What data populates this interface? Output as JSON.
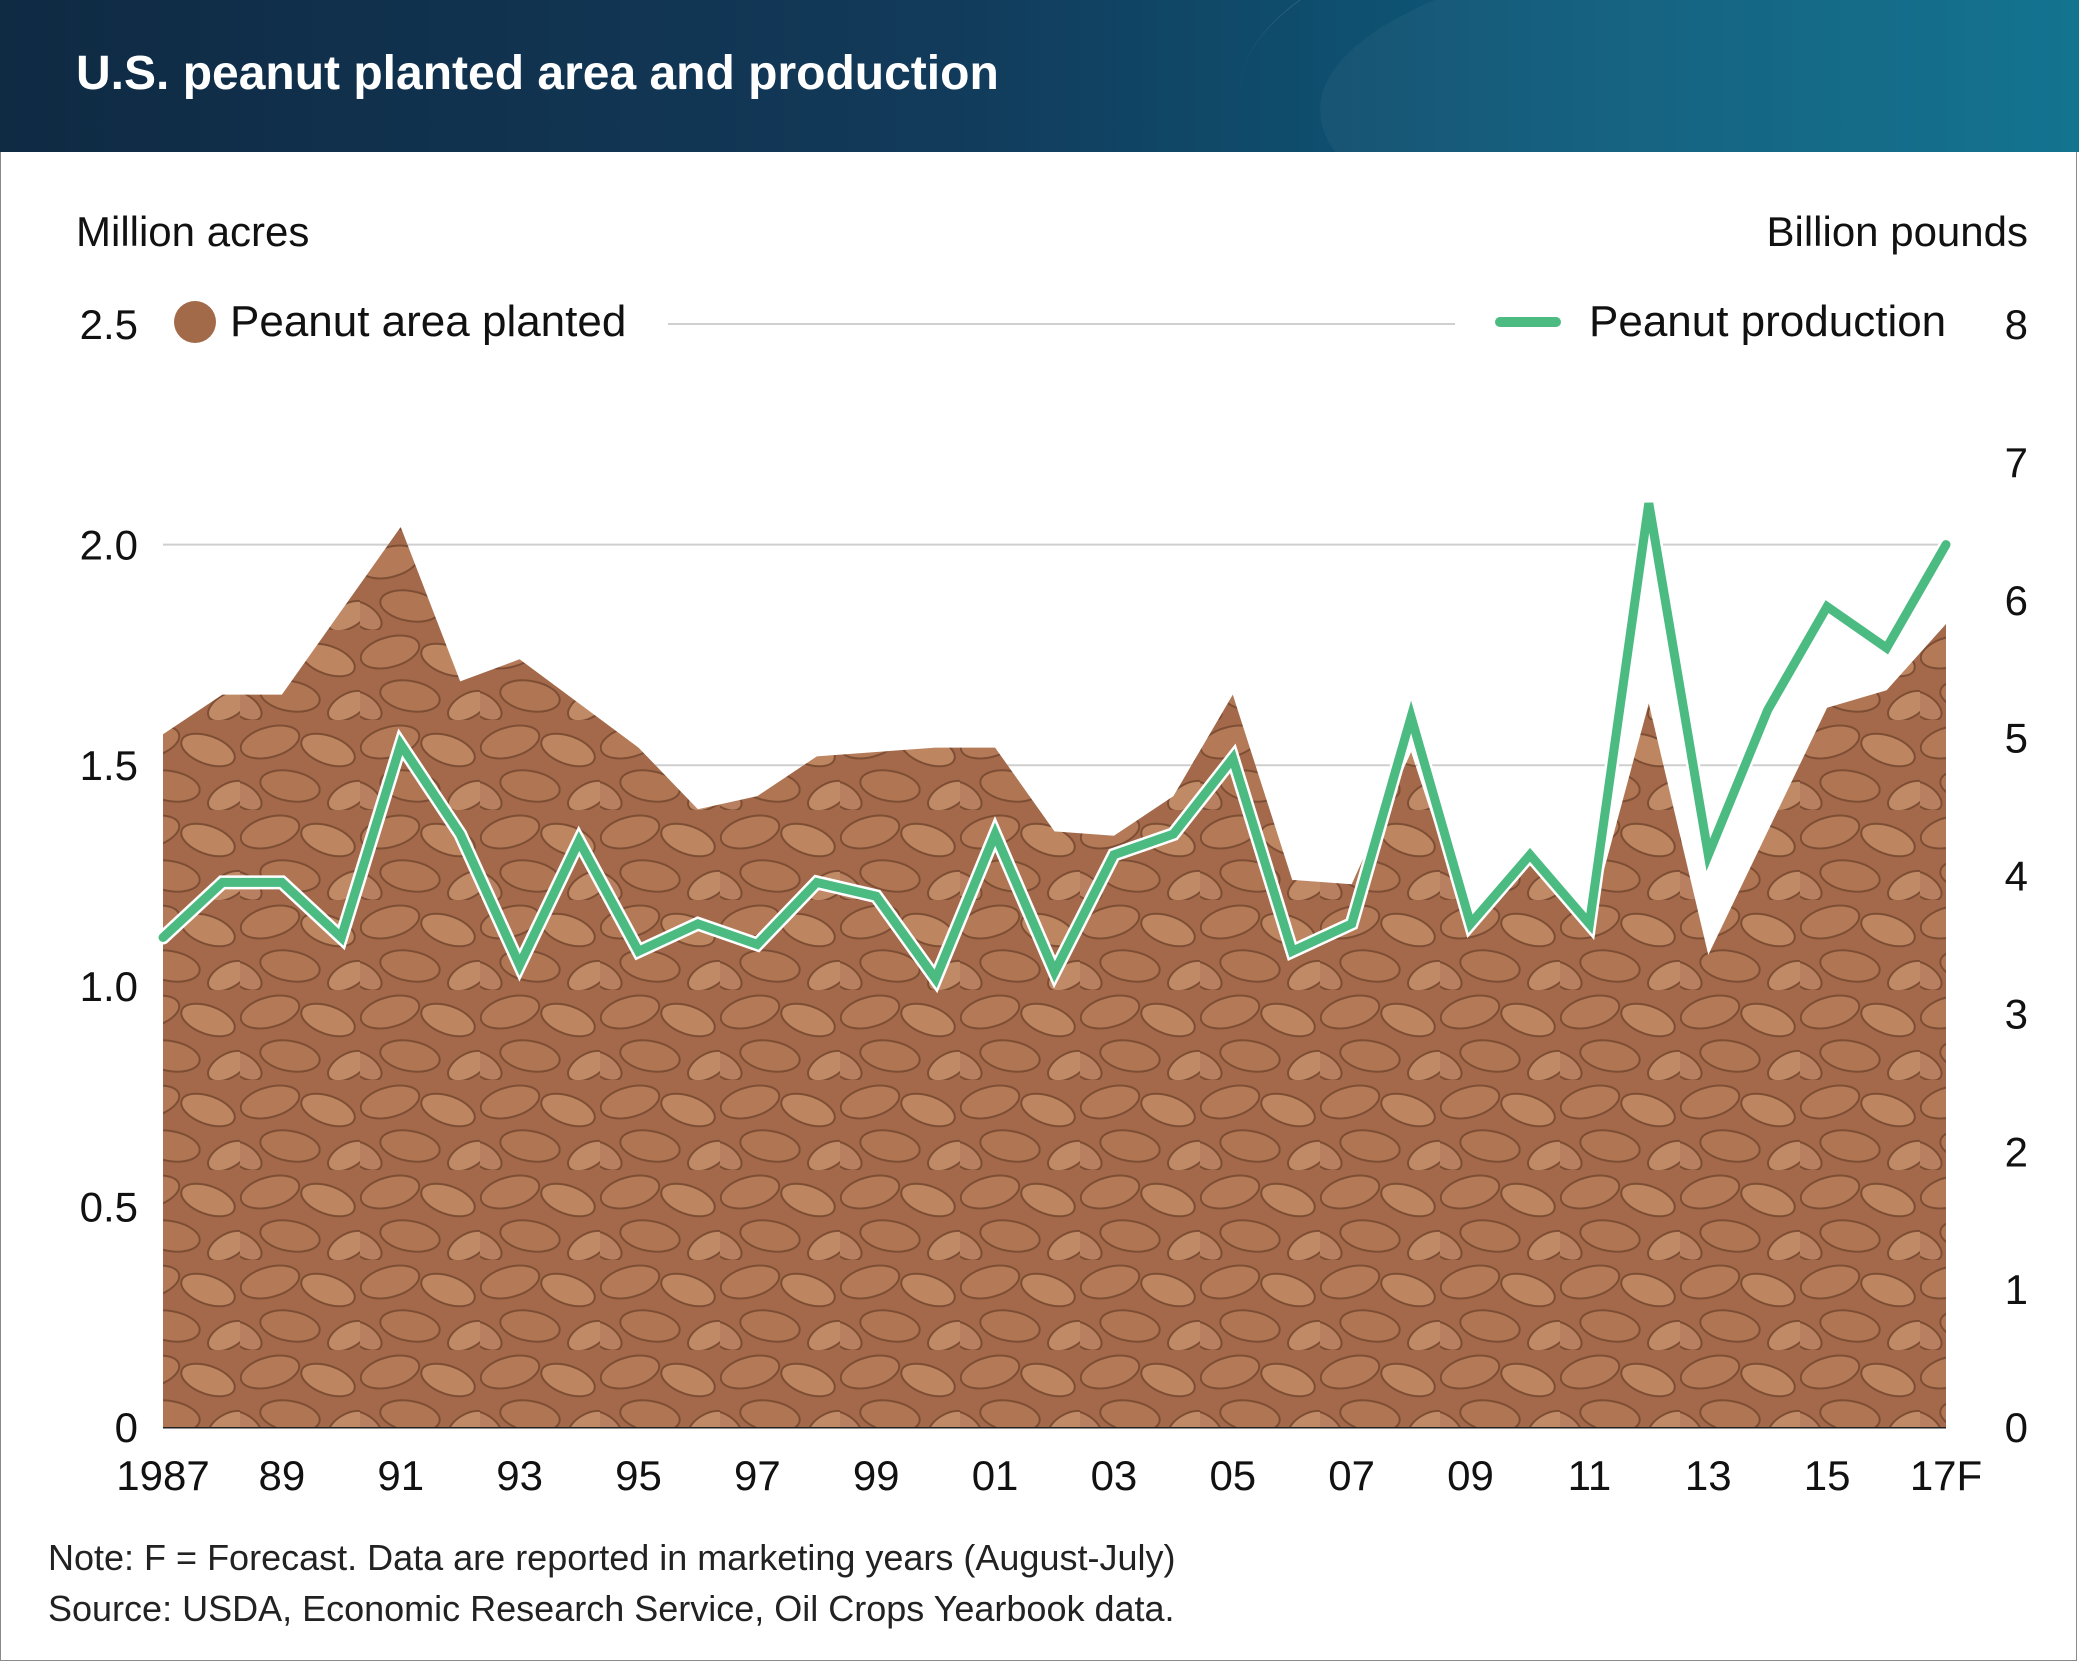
{
  "title": "U.S. peanut planted area and production",
  "left_axis_title": "Million acres",
  "right_axis_title": "Billion pounds",
  "legend": {
    "area_label": "Peanut area planted",
    "line_label": "Peanut production"
  },
  "notes": {
    "note": "Note: F = Forecast. Data are reported in marketing years (August-July)",
    "source": "Source: USDA, Economic Research Service, Oil Crops Yearbook data."
  },
  "colors": {
    "area": "#a26a48",
    "line": "#4cbb82",
    "header_start": "#0f2a43",
    "header_end": "#0a6f8c"
  },
  "chart_data": {
    "type": "area",
    "x_labels": [
      "1987",
      "89",
      "91",
      "93",
      "95",
      "97",
      "99",
      "01",
      "03",
      "05",
      "07",
      "09",
      "11",
      "13",
      "15",
      "17F"
    ],
    "years": [
      1987,
      1988,
      1989,
      1990,
      1991,
      1992,
      1993,
      1994,
      1995,
      1996,
      1997,
      1998,
      1999,
      2000,
      2001,
      2002,
      2003,
      2004,
      2005,
      2006,
      2007,
      2008,
      2009,
      2010,
      2011,
      2012,
      2013,
      2014,
      2015,
      2016,
      2017
    ],
    "y_left_ticks": [
      "0",
      "0.5",
      "1.0",
      "1.5",
      "2.0",
      "2.5"
    ],
    "y_right_ticks": [
      "0",
      "1",
      "2",
      "3",
      "4",
      "5",
      "6",
      "7",
      "8"
    ],
    "y_left_range": [
      0,
      2.5
    ],
    "y_right_range": [
      0,
      8
    ],
    "grid": true,
    "series": [
      {
        "name": "Peanut area planted",
        "axis": "left",
        "style": "area with peanut texture",
        "values": [
          1.57,
          1.66,
          1.66,
          1.85,
          2.04,
          1.69,
          1.74,
          1.64,
          1.54,
          1.4,
          1.43,
          1.52,
          1.53,
          1.54,
          1.54,
          1.35,
          1.34,
          1.43,
          1.66,
          1.24,
          1.23,
          1.53,
          1.12,
          1.29,
          1.14,
          1.64,
          1.07,
          1.35,
          1.63,
          1.67,
          1.82
        ]
      },
      {
        "name": "Peanut production",
        "axis": "right",
        "style": "line",
        "values": [
          3.55,
          3.95,
          3.95,
          3.55,
          4.95,
          4.3,
          3.35,
          4.25,
          3.45,
          3.65,
          3.5,
          3.95,
          3.85,
          3.25,
          4.3,
          3.3,
          4.15,
          4.3,
          4.85,
          3.45,
          3.65,
          5.15,
          3.65,
          4.15,
          3.65,
          6.7,
          4.15,
          5.2,
          5.95,
          5.65,
          6.4
        ]
      }
    ],
    "title": "U.S. peanut planted area and production",
    "ylabel_left": "Million acres",
    "ylabel_right": "Billion pounds",
    "legend_position": "top"
  }
}
